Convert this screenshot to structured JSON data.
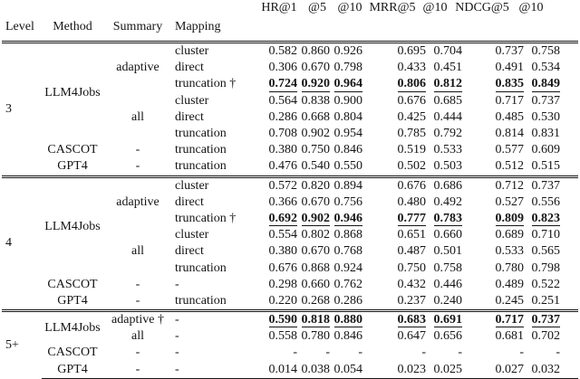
{
  "table": {
    "left_headers": [
      "Level",
      "Method",
      "Summary",
      "Mapping"
    ],
    "metric_headers": [
      "HR@1",
      "@5",
      "@10",
      "MRR@5",
      "@10",
      "NDCG@5",
      "@10"
    ],
    "blocks": [
      {
        "level": "3",
        "rows": [
          {
            "method": "LLM4Jobs",
            "method_span": 6,
            "summary": "adaptive",
            "summary_span": 3,
            "mapping": "cluster",
            "best": false,
            "values": [
              "0.582",
              "0.860",
              "0.926",
              "0.695",
              "0.704",
              "0.737",
              "0.758"
            ]
          },
          {
            "mapping": "direct",
            "best": false,
            "values": [
              "0.306",
              "0.670",
              "0.798",
              "0.433",
              "0.451",
              "0.491",
              "0.534"
            ]
          },
          {
            "mapping": "truncation †",
            "best": true,
            "values": [
              "0.724",
              "0.920",
              "0.964",
              "0.806",
              "0.812",
              "0.835",
              "0.849"
            ]
          },
          {
            "summary": "all",
            "summary_span": 3,
            "mapping": "cluster",
            "best": false,
            "values": [
              "0.564",
              "0.838",
              "0.900",
              "0.676",
              "0.685",
              "0.717",
              "0.737"
            ]
          },
          {
            "mapping": "direct",
            "best": false,
            "values": [
              "0.286",
              "0.668",
              "0.804",
              "0.425",
              "0.444",
              "0.485",
              "0.530"
            ]
          },
          {
            "mapping": "truncation",
            "best": false,
            "values": [
              "0.708",
              "0.902",
              "0.954",
              "0.785",
              "0.792",
              "0.814",
              "0.831"
            ]
          },
          {
            "method": "CASCOT",
            "method_span": 1,
            "summary": "-",
            "summary_span": 1,
            "mapping": "truncation",
            "best": false,
            "values": [
              "0.380",
              "0.750",
              "0.846",
              "0.519",
              "0.533",
              "0.577",
              "0.609"
            ]
          },
          {
            "method": "GPT4",
            "method_span": 1,
            "summary": "-",
            "summary_span": 1,
            "mapping": "truncation",
            "best": false,
            "values": [
              "0.476",
              "0.540",
              "0.550",
              "0.502",
              "0.503",
              "0.512",
              "0.515"
            ]
          }
        ]
      },
      {
        "level": "4",
        "rows": [
          {
            "method": "LLM4Jobs",
            "method_span": 6,
            "summary": "adaptive",
            "summary_span": 3,
            "mapping": "cluster",
            "best": false,
            "values": [
              "0.572",
              "0.820",
              "0.894",
              "0.676",
              "0.686",
              "0.712",
              "0.737"
            ]
          },
          {
            "mapping": "direct",
            "best": false,
            "values": [
              "0.366",
              "0.670",
              "0.756",
              "0.480",
              "0.492",
              "0.527",
              "0.556"
            ]
          },
          {
            "mapping": "truncation †",
            "best": true,
            "values": [
              "0.692",
              "0.902",
              "0.946",
              "0.777",
              "0.783",
              "0.809",
              "0.823"
            ]
          },
          {
            "summary": "all",
            "summary_span": 3,
            "mapping": "cluster",
            "best": false,
            "values": [
              "0.554",
              "0.802",
              "0.868",
              "0.651",
              "0.660",
              "0.689",
              "0.710"
            ]
          },
          {
            "mapping": "direct",
            "best": false,
            "values": [
              "0.380",
              "0.670",
              "0.768",
              "0.487",
              "0.501",
              "0.533",
              "0.565"
            ]
          },
          {
            "mapping": "truncation",
            "best": false,
            "values": [
              "0.676",
              "0.868",
              "0.924",
              "0.750",
              "0.758",
              "0.780",
              "0.798"
            ]
          },
          {
            "method": "CASCOT",
            "method_span": 1,
            "summary": "-",
            "summary_span": 1,
            "mapping": "-",
            "best": false,
            "values": [
              "0.298",
              "0.660",
              "0.762",
              "0.432",
              "0.446",
              "0.489",
              "0.522"
            ]
          },
          {
            "method": "GPT4",
            "method_span": 1,
            "summary": "-",
            "summary_span": 1,
            "mapping": "truncation",
            "best": false,
            "values": [
              "0.220",
              "0.268",
              "0.286",
              "0.237",
              "0.240",
              "0.245",
              "0.251"
            ]
          }
        ]
      },
      {
        "level": "5+",
        "rows": [
          {
            "method": "LLM4Jobs",
            "method_span": 2,
            "summary": "adaptive †",
            "summary_span": 1,
            "mapping": "-",
            "best": true,
            "values": [
              "0.590",
              "0.818",
              "0.880",
              "0.683",
              "0.691",
              "0.717",
              "0.737"
            ]
          },
          {
            "summary": "all",
            "summary_span": 1,
            "mapping": "-",
            "best": false,
            "values": [
              "0.558",
              "0.780",
              "0.846",
              "0.647",
              "0.656",
              "0.681",
              "0.702"
            ]
          },
          {
            "method": "CASCOT",
            "method_span": 1,
            "summary": "-",
            "summary_span": 1,
            "mapping": "-",
            "best": false,
            "values": [
              "-",
              "-",
              "-",
              "-",
              "-",
              "-",
              "-"
            ]
          },
          {
            "method": "GPT4",
            "method_span": 1,
            "summary": "-",
            "summary_span": 1,
            "mapping": "-",
            "best": false,
            "values": [
              "0.014",
              "0.038",
              "0.054",
              "0.023",
              "0.025",
              "0.027",
              "0.032"
            ]
          }
        ]
      }
    ]
  }
}
